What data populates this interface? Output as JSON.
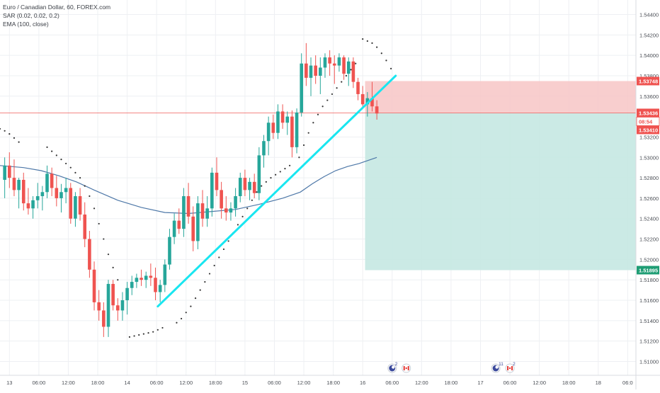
{
  "legend": {
    "symbol": "Euro / Canadian Dollar, 60, FOREX.com",
    "sar": "SAR (0.02, 0.02, 0.2)",
    "ema": "EMA (100, close)"
  },
  "colors": {
    "up": "#26a69a",
    "down": "#ef5350",
    "ema": "#4e78a8",
    "sar": "#333333",
    "trendline": "#19e6f0",
    "stop_zone": "#f7c6c6",
    "target_zone": "#c5e8e2",
    "grid": "#eef0f3"
  },
  "chart_data": {
    "type": "candlestick",
    "instrument": "Euro / Canadian Dollar",
    "timeframe": "60",
    "source": "FOREX.com",
    "ylim": [
      1.5092,
      1.5448
    ],
    "xlim": [
      0,
      54
    ],
    "y_ticks": [
      "1.54400",
      "1.54200",
      "1.54000",
      "1.53800",
      "1.53600",
      "1.53200",
      "1.53000",
      "1.52800",
      "1.52600",
      "1.52400",
      "1.52200",
      "1.52000",
      "1.51800",
      "1.51600",
      "1.51400",
      "1.51200",
      "1.51000"
    ],
    "x_ticks": [
      {
        "label": "13",
        "x": 0.8
      },
      {
        "label": "06:00",
        "x": 3.3
      },
      {
        "label": "12:00",
        "x": 5.8
      },
      {
        "label": "18:00",
        "x": 8.3
      },
      {
        "label": "14",
        "x": 10.8
      },
      {
        "label": "06:00",
        "x": 13.3
      },
      {
        "label": "12:00",
        "x": 15.8
      },
      {
        "label": "18:00",
        "x": 18.3
      },
      {
        "label": "15",
        "x": 20.8
      },
      {
        "label": "06:00",
        "x": 23.3
      },
      {
        "label": "12:00",
        "x": 25.8
      },
      {
        "label": "18:00",
        "x": 28.3
      },
      {
        "label": "16",
        "x": 30.8
      },
      {
        "label": "06:00",
        "x": 33.3
      },
      {
        "label": "12:00",
        "x": 35.8
      },
      {
        "label": "18:00",
        "x": 38.3
      },
      {
        "label": "17",
        "x": 40.8
      },
      {
        "label": "06:00",
        "x": 43.3
      },
      {
        "label": "12:00",
        "x": 45.8
      },
      {
        "label": "18:00",
        "x": 48.3
      },
      {
        "label": "18",
        "x": 50.8
      },
      {
        "label": "06:0",
        "x": 53.3
      }
    ],
    "candles": [
      {
        "x": 0.4,
        "o": 1.5278,
        "h": 1.53,
        "l": 1.526,
        "c": 1.5292
      },
      {
        "x": 0.8,
        "o": 1.5292,
        "h": 1.5305,
        "l": 1.527,
        "c": 1.528
      },
      {
        "x": 1.2,
        "o": 1.528,
        "h": 1.5298,
        "l": 1.5262,
        "c": 1.5268
      },
      {
        "x": 1.6,
        "o": 1.5268,
        "h": 1.528,
        "l": 1.525,
        "c": 1.5278
      },
      {
        "x": 2.0,
        "o": 1.5278,
        "h": 1.5285,
        "l": 1.5248,
        "c": 1.5255
      },
      {
        "x": 2.4,
        "o": 1.5255,
        "h": 1.527,
        "l": 1.5244,
        "c": 1.525
      },
      {
        "x": 2.8,
        "o": 1.525,
        "h": 1.5262,
        "l": 1.524,
        "c": 1.5258
      },
      {
        "x": 3.2,
        "o": 1.5258,
        "h": 1.5275,
        "l": 1.525,
        "c": 1.5262
      },
      {
        "x": 3.6,
        "o": 1.5262,
        "h": 1.5272,
        "l": 1.5248,
        "c": 1.5266
      },
      {
        "x": 4.0,
        "o": 1.5266,
        "h": 1.5292,
        "l": 1.526,
        "c": 1.5284
      },
      {
        "x": 4.4,
        "o": 1.5284,
        "h": 1.529,
        "l": 1.5262,
        "c": 1.527
      },
      {
        "x": 4.8,
        "o": 1.527,
        "h": 1.5282,
        "l": 1.5252,
        "c": 1.526
      },
      {
        "x": 5.2,
        "o": 1.526,
        "h": 1.5274,
        "l": 1.5246,
        "c": 1.5266
      },
      {
        "x": 5.6,
        "o": 1.5266,
        "h": 1.528,
        "l": 1.5255,
        "c": 1.527
      },
      {
        "x": 6.0,
        "o": 1.527,
        "h": 1.5275,
        "l": 1.5235,
        "c": 1.524
      },
      {
        "x": 6.4,
        "o": 1.524,
        "h": 1.5266,
        "l": 1.5232,
        "c": 1.5262
      },
      {
        "x": 6.8,
        "o": 1.5262,
        "h": 1.527,
        "l": 1.5238,
        "c": 1.5244
      },
      {
        "x": 7.2,
        "o": 1.5244,
        "h": 1.5256,
        "l": 1.5212,
        "c": 1.522
      },
      {
        "x": 7.6,
        "o": 1.522,
        "h": 1.5228,
        "l": 1.5182,
        "c": 1.519
      },
      {
        "x": 8.0,
        "o": 1.519,
        "h": 1.5198,
        "l": 1.515,
        "c": 1.5158
      },
      {
        "x": 8.4,
        "o": 1.5158,
        "h": 1.517,
        "l": 1.514,
        "c": 1.515
      },
      {
        "x": 8.8,
        "o": 1.515,
        "h": 1.5158,
        "l": 1.5124,
        "c": 1.5134
      },
      {
        "x": 9.2,
        "o": 1.5134,
        "h": 1.518,
        "l": 1.5124,
        "c": 1.5176
      },
      {
        "x": 9.6,
        "o": 1.5176,
        "h": 1.518,
        "l": 1.515,
        "c": 1.5155
      },
      {
        "x": 10.0,
        "o": 1.5155,
        "h": 1.5162,
        "l": 1.514,
        "c": 1.515
      },
      {
        "x": 10.4,
        "o": 1.515,
        "h": 1.5168,
        "l": 1.514,
        "c": 1.516
      },
      {
        "x": 10.8,
        "o": 1.516,
        "h": 1.5178,
        "l": 1.5146,
        "c": 1.5172
      },
      {
        "x": 11.2,
        "o": 1.5172,
        "h": 1.5184,
        "l": 1.5165,
        "c": 1.5178
      },
      {
        "x": 11.6,
        "o": 1.5178,
        "h": 1.5186,
        "l": 1.5172,
        "c": 1.5182
      },
      {
        "x": 12.0,
        "o": 1.5182,
        "h": 1.519,
        "l": 1.5174,
        "c": 1.518
      },
      {
        "x": 12.4,
        "o": 1.518,
        "h": 1.5188,
        "l": 1.5172,
        "c": 1.5184
      },
      {
        "x": 12.8,
        "o": 1.5184,
        "h": 1.5196,
        "l": 1.5174,
        "c": 1.5182
      },
      {
        "x": 13.2,
        "o": 1.5182,
        "h": 1.5192,
        "l": 1.516,
        "c": 1.5168
      },
      {
        "x": 13.6,
        "o": 1.5168,
        "h": 1.518,
        "l": 1.5158,
        "c": 1.5175
      },
      {
        "x": 14.0,
        "o": 1.5175,
        "h": 1.52,
        "l": 1.5168,
        "c": 1.5195
      },
      {
        "x": 14.4,
        "o": 1.5195,
        "h": 1.523,
        "l": 1.519,
        "c": 1.5222
      },
      {
        "x": 14.8,
        "o": 1.5222,
        "h": 1.5245,
        "l": 1.5215,
        "c": 1.5238
      },
      {
        "x": 15.2,
        "o": 1.5238,
        "h": 1.525,
        "l": 1.5225,
        "c": 1.523
      },
      {
        "x": 15.6,
        "o": 1.523,
        "h": 1.527,
        "l": 1.5222,
        "c": 1.5262
      },
      {
        "x": 16.0,
        "o": 1.5262,
        "h": 1.5275,
        "l": 1.5235,
        "c": 1.5242
      },
      {
        "x": 16.4,
        "o": 1.5242,
        "h": 1.5252,
        "l": 1.5208,
        "c": 1.5218
      },
      {
        "x": 16.8,
        "o": 1.5218,
        "h": 1.5262,
        "l": 1.521,
        "c": 1.5255
      },
      {
        "x": 17.2,
        "o": 1.5255,
        "h": 1.5268,
        "l": 1.5232,
        "c": 1.524
      },
      {
        "x": 17.6,
        "o": 1.524,
        "h": 1.5262,
        "l": 1.5232,
        "c": 1.525
      },
      {
        "x": 18.0,
        "o": 1.525,
        "h": 1.529,
        "l": 1.5242,
        "c": 1.5285
      },
      {
        "x": 18.4,
        "o": 1.5285,
        "h": 1.53,
        "l": 1.5262,
        "c": 1.5268
      },
      {
        "x": 18.8,
        "o": 1.5268,
        "h": 1.5276,
        "l": 1.524,
        "c": 1.525
      },
      {
        "x": 19.2,
        "o": 1.525,
        "h": 1.5262,
        "l": 1.5238,
        "c": 1.5246
      },
      {
        "x": 19.6,
        "o": 1.5246,
        "h": 1.5256,
        "l": 1.5238,
        "c": 1.525
      },
      {
        "x": 20.0,
        "o": 1.525,
        "h": 1.527,
        "l": 1.5242,
        "c": 1.5262
      },
      {
        "x": 20.4,
        "o": 1.5262,
        "h": 1.5285,
        "l": 1.5256,
        "c": 1.528
      },
      {
        "x": 20.8,
        "o": 1.528,
        "h": 1.5288,
        "l": 1.5262,
        "c": 1.5268
      },
      {
        "x": 21.2,
        "o": 1.5268,
        "h": 1.528,
        "l": 1.5258,
        "c": 1.5276
      },
      {
        "x": 21.6,
        "o": 1.5276,
        "h": 1.5284,
        "l": 1.526,
        "c": 1.5265
      },
      {
        "x": 22.0,
        "o": 1.5265,
        "h": 1.531,
        "l": 1.5258,
        "c": 1.5302
      },
      {
        "x": 22.4,
        "o": 1.5302,
        "h": 1.5322,
        "l": 1.529,
        "c": 1.5316
      },
      {
        "x": 22.8,
        "o": 1.5316,
        "h": 1.534,
        "l": 1.5302,
        "c": 1.5334
      },
      {
        "x": 23.2,
        "o": 1.5334,
        "h": 1.5342,
        "l": 1.5318,
        "c": 1.5324
      },
      {
        "x": 23.6,
        "o": 1.5324,
        "h": 1.5352,
        "l": 1.5318,
        "c": 1.5345
      },
      {
        "x": 24.0,
        "o": 1.5345,
        "h": 1.5352,
        "l": 1.5328,
        "c": 1.5334
      },
      {
        "x": 24.4,
        "o": 1.5334,
        "h": 1.5345,
        "l": 1.5322,
        "c": 1.534
      },
      {
        "x": 24.8,
        "o": 1.534,
        "h": 1.5346,
        "l": 1.53,
        "c": 1.531
      },
      {
        "x": 25.2,
        "o": 1.531,
        "h": 1.5348,
        "l": 1.5304,
        "c": 1.5344
      },
      {
        "x": 25.6,
        "o": 1.5344,
        "h": 1.5402,
        "l": 1.534,
        "c": 1.5392
      },
      {
        "x": 26.0,
        "o": 1.5392,
        "h": 1.5412,
        "l": 1.537,
        "c": 1.5378
      },
      {
        "x": 26.4,
        "o": 1.5378,
        "h": 1.5398,
        "l": 1.536,
        "c": 1.539
      },
      {
        "x": 26.8,
        "o": 1.539,
        "h": 1.54,
        "l": 1.5372,
        "c": 1.538
      },
      {
        "x": 27.2,
        "o": 1.538,
        "h": 1.5398,
        "l": 1.5362,
        "c": 1.5388
      },
      {
        "x": 27.6,
        "o": 1.5388,
        "h": 1.5402,
        "l": 1.5378,
        "c": 1.5398
      },
      {
        "x": 28.0,
        "o": 1.5398,
        "h": 1.5405,
        "l": 1.538,
        "c": 1.5392
      },
      {
        "x": 28.4,
        "o": 1.5392,
        "h": 1.54,
        "l": 1.5372,
        "c": 1.539
      },
      {
        "x": 28.8,
        "o": 1.539,
        "h": 1.5402,
        "l": 1.5384,
        "c": 1.5398
      },
      {
        "x": 29.2,
        "o": 1.5398,
        "h": 1.54,
        "l": 1.5376,
        "c": 1.5382
      },
      {
        "x": 29.6,
        "o": 1.5382,
        "h": 1.5398,
        "l": 1.537,
        "c": 1.5394
      },
      {
        "x": 30.0,
        "o": 1.5394,
        "h": 1.5398,
        "l": 1.5368,
        "c": 1.5374
      },
      {
        "x": 30.4,
        "o": 1.5374,
        "h": 1.5378,
        "l": 1.5356,
        "c": 1.5362
      },
      {
        "x": 30.8,
        "o": 1.5362,
        "h": 1.537,
        "l": 1.5348,
        "c": 1.5352
      },
      {
        "x": 31.2,
        "o": 1.5352,
        "h": 1.5364,
        "l": 1.534,
        "c": 1.5358
      },
      {
        "x": 31.6,
        "o": 1.5358,
        "h": 1.5374,
        "l": 1.5345,
        "c": 1.535
      },
      {
        "x": 32.0,
        "o": 1.535,
        "h": 1.5356,
        "l": 1.5337,
        "c": 1.5343
      }
    ],
    "ema": [
      [
        0,
        1.5292
      ],
      [
        2,
        1.529
      ],
      [
        3.5,
        1.5287
      ],
      [
        5,
        1.5282
      ],
      [
        6.5,
        1.5276
      ],
      [
        8,
        1.5268
      ],
      [
        10,
        1.5258
      ],
      [
        12,
        1.5251
      ],
      [
        14,
        1.5246
      ],
      [
        16,
        1.5245
      ],
      [
        18,
        1.5247
      ],
      [
        20,
        1.5249
      ],
      [
        22,
        1.5254
      ],
      [
        24,
        1.526
      ],
      [
        25.5,
        1.5266
      ],
      [
        26.5,
        1.5274
      ],
      [
        27.5,
        1.5281
      ],
      [
        28.5,
        1.5287
      ],
      [
        29.5,
        1.5291
      ],
      [
        30.5,
        1.5294
      ],
      [
        31.5,
        1.5298
      ],
      [
        32,
        1.53
      ]
    ],
    "sar": [
      [
        0.0,
        1.5328
      ],
      [
        0.4,
        1.5326
      ],
      [
        0.8,
        1.5323
      ],
      [
        1.2,
        1.5319
      ],
      [
        1.6,
        1.5315
      ],
      [
        4.0,
        1.531
      ],
      [
        4.4,
        1.5306
      ],
      [
        4.8,
        1.5302
      ],
      [
        5.2,
        1.5298
      ],
      [
        5.6,
        1.5294
      ],
      [
        6.0,
        1.529
      ],
      [
        6.4,
        1.5285
      ],
      [
        6.8,
        1.528
      ],
      [
        7.2,
        1.5272
      ],
      [
        7.6,
        1.5262
      ],
      [
        8.0,
        1.525
      ],
      [
        8.4,
        1.5235
      ],
      [
        8.8,
        1.522
      ],
      [
        9.2,
        1.5205
      ],
      [
        9.6,
        1.5192
      ],
      [
        10.0,
        1.518
      ],
      [
        11.0,
        1.5124
      ],
      [
        11.4,
        1.5125
      ],
      [
        11.8,
        1.5126
      ],
      [
        12.2,
        1.5127
      ],
      [
        12.6,
        1.5128
      ],
      [
        13.0,
        1.5129
      ],
      [
        13.4,
        1.5131
      ],
      [
        13.8,
        1.5133
      ],
      [
        15.0,
        1.5138
      ],
      [
        15.4,
        1.5142
      ],
      [
        15.8,
        1.5148
      ],
      [
        16.2,
        1.5154
      ],
      [
        16.6,
        1.5162
      ],
      [
        17.0,
        1.517
      ],
      [
        17.4,
        1.5178
      ],
      [
        17.8,
        1.5186
      ],
      [
        18.2,
        1.5194
      ],
      [
        18.6,
        1.5202
      ],
      [
        19.0,
        1.521
      ],
      [
        19.4,
        1.5218
      ],
      [
        19.8,
        1.5226
      ],
      [
        20.2,
        1.5234
      ],
      [
        20.6,
        1.5242
      ],
      [
        21.0,
        1.525
      ],
      [
        21.4,
        1.5258
      ],
      [
        21.8,
        1.5266
      ],
      [
        22.2,
        1.5272
      ],
      [
        22.6,
        1.5276
      ],
      [
        23.0,
        1.528
      ],
      [
        23.4,
        1.5283
      ],
      [
        23.8,
        1.5286
      ],
      [
        24.2,
        1.5289
      ],
      [
        24.6,
        1.5292
      ],
      [
        25.4,
        1.53
      ],
      [
        25.8,
        1.5312
      ],
      [
        26.2,
        1.5324
      ],
      [
        26.6,
        1.5334
      ],
      [
        27.0,
        1.5342
      ],
      [
        27.4,
        1.535
      ],
      [
        27.8,
        1.5356
      ],
      [
        28.2,
        1.5362
      ],
      [
        28.6,
        1.5368
      ],
      [
        29.0,
        1.5374
      ],
      [
        29.4,
        1.538
      ],
      [
        29.8,
        1.5386
      ],
      [
        30.2,
        1.5392
      ],
      [
        30.8,
        1.5416
      ],
      [
        31.2,
        1.5414
      ],
      [
        31.6,
        1.5412
      ],
      [
        32.0,
        1.5408
      ],
      [
        32.4,
        1.5402
      ],
      [
        32.8,
        1.5395
      ],
      [
        33.2,
        1.5387
      ]
    ],
    "trendline": {
      "x1": 13.4,
      "y1": 1.5154,
      "x2": 33.6,
      "y2": 1.538
    },
    "position": {
      "x_start": 31.0,
      "x_end": 54.0,
      "entry": 1.53436,
      "stop": 1.53748,
      "target": 1.51895
    },
    "price_labels": [
      {
        "text": "1.53748",
        "price": 1.53748,
        "kind": "stop"
      },
      {
        "text": "1.53436",
        "price": 1.53436,
        "kind": "last"
      },
      {
        "text": "08:54",
        "price": 1.53436,
        "kind": "countdown"
      },
      {
        "text": "1.53410",
        "price": 1.5341,
        "kind": "current"
      },
      {
        "text": "1.51895",
        "price": 1.51895,
        "kind": "target"
      }
    ],
    "events": [
      {
        "x": 33.3,
        "type": "economic-event",
        "badge": "2"
      },
      {
        "x": 34.5,
        "type": "canada-flag",
        "badge": ""
      },
      {
        "x": 42.1,
        "type": "economic-event",
        "badge": "11"
      },
      {
        "x": 43.3,
        "type": "canada-flag",
        "badge": "2"
      }
    ]
  }
}
